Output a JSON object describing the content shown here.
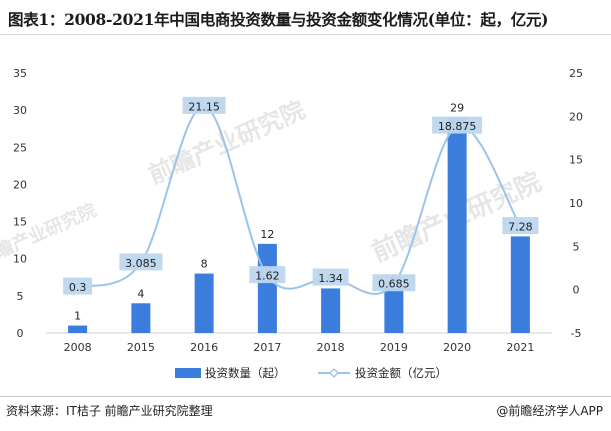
{
  "title": "图表1：2008-2021年中国电商投资数量与投资金额变化情况(单位：起，亿元)",
  "source": "资料来源：IT桔子 前瞻产业研究院整理",
  "brand": "@前瞻经济学人APP",
  "watermark": "前瞻产业研究院",
  "chart_data": {
    "type": "bar+line",
    "categories": [
      "2008",
      "2015",
      "2016",
      "2017",
      "2018",
      "2019",
      "2020",
      "2021"
    ],
    "series": [
      {
        "name": "投资数量（起）",
        "type": "bar",
        "axis": "left",
        "values": [
          1,
          4,
          8,
          12,
          6,
          6,
          29,
          13
        ],
        "labels": [
          "1",
          "4",
          "8",
          "12",
          "6",
          "6",
          "29",
          "13"
        ],
        "color": "#3b7ddd"
      },
      {
        "name": "投资金额（亿元）",
        "type": "line",
        "axis": "right",
        "values": [
          0.3,
          3.085,
          21.15,
          1.62,
          1.34,
          0.685,
          18.875,
          7.28
        ],
        "labels": [
          "0.3",
          "3.085",
          "21.15",
          "1.62",
          "1.34",
          "0.685",
          "18.875",
          "7.28"
        ],
        "color": "#9dc3e6"
      }
    ],
    "y_left": {
      "min": 0,
      "max": 35,
      "ticks": [
        "0",
        "5",
        "10",
        "15",
        "20",
        "25",
        "30",
        "35"
      ]
    },
    "y_right": {
      "min": -5,
      "max": 25,
      "ticks": [
        "-5",
        "0",
        "5",
        "10",
        "15",
        "20",
        "25"
      ]
    },
    "grid": false,
    "legend_position": "bottom"
  }
}
